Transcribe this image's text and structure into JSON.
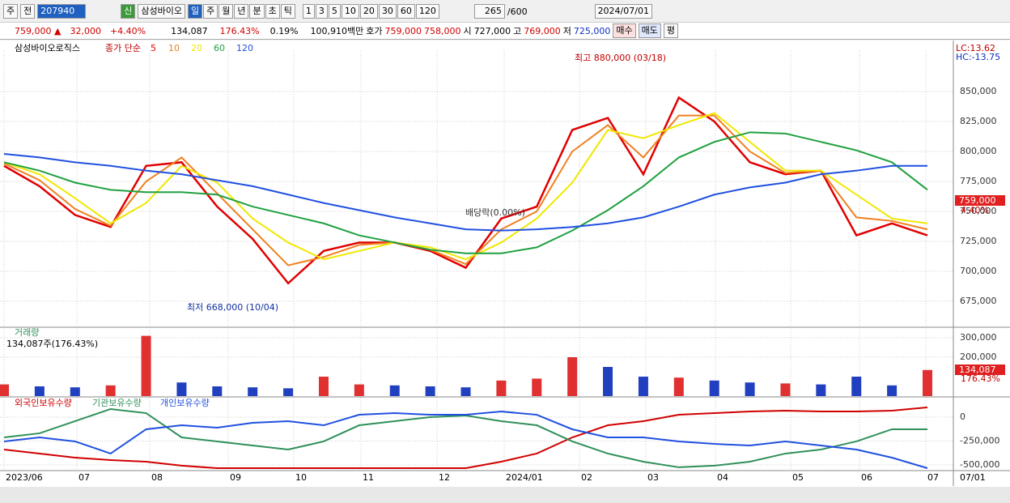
{
  "toolbar": {
    "market": "주",
    "mode": "전",
    "code": "207940",
    "badge": "신",
    "name": "삼성바이오",
    "periods": [
      "일",
      "주",
      "월",
      "년",
      "분",
      "초",
      "틱"
    ],
    "intervals": [
      "1",
      "3",
      "5",
      "10",
      "20",
      "30",
      "60",
      "120"
    ],
    "count": "265",
    "max": "/600",
    "date": "2024/07/01"
  },
  "info_bar": {
    "price": "759,000 ▲",
    "change": "32,000",
    "change_pct": "+4.40%",
    "volume": "134,087",
    "volume_pct": "176.43%",
    "turnover": "0.19%",
    "amount": "100,910백만",
    "quote_label": "호가",
    "ask": "759,000",
    "bid": "758,000",
    "open_label": "시",
    "open": "727,000",
    "high_label": "고",
    "high": "769,000",
    "low_label": "저",
    "low": "725,000",
    "buy": "매수",
    "sell": "매도",
    "eval": "평"
  },
  "time_axis": [
    "2023/06",
    "07",
    "08",
    "09",
    "10",
    "11",
    "12",
    "2024/01",
    "02",
    "03",
    "04",
    "05",
    "06",
    "07"
  ],
  "time_axis_end": "07/01",
  "chart_data": [
    {
      "type": "line",
      "title": "삼성바이오로직스",
      "legend_title": "종가 단순",
      "ylim": [
        654000,
        884500
      ],
      "yticks": [
        {
          "value": 675000,
          "label": "675,000"
        },
        {
          "value": 700000,
          "label": "700,000"
        },
        {
          "value": 725000,
          "label": "725,000"
        },
        {
          "value": 750000,
          "label": "750,000"
        },
        {
          "value": 775000,
          "label": "775,000"
        },
        {
          "value": 800000,
          "label": "800,000"
        },
        {
          "value": 825000,
          "label": "825,000"
        },
        {
          "value": 850000,
          "label": "850,000"
        }
      ],
      "grid": true,
      "series": [
        {
          "name": "5",
          "color": "#e00000",
          "values": [
            788000,
            771000,
            747000,
            737000,
            788000,
            791000,
            754000,
            727000,
            690000,
            717000,
            724000,
            724000,
            717000,
            703000,
            744000,
            754000,
            818000,
            828000,
            781000,
            845000,
            825000,
            791000,
            781000,
            784000,
            730000,
            740000,
            730000
          ]
        },
        {
          "name": "10",
          "color": "#f08020",
          "values": [
            790000,
            776000,
            752000,
            738000,
            775000,
            795000,
            765000,
            735000,
            705000,
            712000,
            722000,
            724000,
            718000,
            706000,
            735000,
            750000,
            800000,
            822000,
            795000,
            830000,
            830000,
            800000,
            782000,
            784000,
            745000,
            742000,
            735000
          ]
        },
        {
          "name": "20",
          "color": "#f0e800",
          "values": [
            791000,
            781000,
            761000,
            740000,
            757000,
            788000,
            774000,
            744000,
            724000,
            710000,
            717000,
            724000,
            720000,
            710000,
            724000,
            744000,
            774000,
            818000,
            811000,
            822000,
            832000,
            808000,
            784000,
            784000,
            764000,
            744000,
            740000
          ]
        },
        {
          "name": "60",
          "color": "#20a040",
          "values": [
            791000,
            784000,
            774000,
            768000,
            766000,
            766000,
            764000,
            754000,
            747000,
            740000,
            730000,
            724000,
            718000,
            715000,
            715000,
            720000,
            734000,
            751000,
            771000,
            795000,
            808000,
            816000,
            815000,
            808000,
            801000,
            791000,
            768000
          ]
        },
        {
          "name": "120",
          "color": "#2050e0",
          "values": [
            798000,
            795000,
            791000,
            788000,
            784000,
            781000,
            776000,
            771000,
            764000,
            757000,
            751000,
            745000,
            740000,
            735000,
            734000,
            735000,
            737000,
            740000,
            745000,
            754000,
            764000,
            770000,
            774000,
            781000,
            784000,
            788000,
            788000
          ]
        }
      ],
      "annotations": [
        "최고 880,000 (03/18)",
        "최저 668,000 (10/04)",
        "배당락(0.00%)"
      ],
      "last_price": "759,000",
      "last_pct": "4.40%",
      "lc": "LC:13.62",
      "hc": "HC:-13.75"
    },
    {
      "type": "bar",
      "title": "거래량",
      "subtitle": "134,087주(176.43%)",
      "ylim": [
        0,
        350000
      ],
      "yticks": [
        {
          "value": 200000,
          "label": "200,000"
        },
        {
          "value": 300000,
          "label": "300,000"
        }
      ],
      "values": [
        60000,
        50000,
        45000,
        55000,
        310000,
        70000,
        50000,
        45000,
        40000,
        100000,
        60000,
        55000,
        50000,
        45000,
        80000,
        90000,
        200000,
        150000,
        100000,
        95000,
        80000,
        70000,
        65000,
        60000,
        100000,
        55000,
        134087
      ],
      "colors": [
        "#e03030",
        "#2040c0",
        "#2040c0",
        "#e03030",
        "#e03030",
        "#2040c0",
        "#2040c0",
        "#2040c0",
        "#2040c0",
        "#e03030",
        "#e03030",
        "#2040c0",
        "#2040c0",
        "#2040c0",
        "#e03030",
        "#e03030",
        "#e03030",
        "#2040c0",
        "#2040c0",
        "#e03030",
        "#2040c0",
        "#2040c0",
        "#e03030",
        "#2040c0",
        "#2040c0",
        "#2040c0",
        "#e03030"
      ],
      "last_volume": "134,087",
      "last_pct": "176.43%"
    },
    {
      "type": "line",
      "ylim": [
        -551000,
        195000
      ],
      "yticks": [
        0,
        {
          "value": -250000,
          "label": "-250,000"
        },
        {
          "value": -500000,
          "label": "-500,000"
        }
      ],
      "series": [
        {
          "name": "외국인보유수량",
          "color": "#d00000",
          "values": [
            -339000,
            -381000,
            -424000,
            -449000,
            -466000,
            -508000,
            -534000,
            -534000,
            -534000,
            -534000,
            -534000,
            -534000,
            -534000,
            -534000,
            -466000,
            -381000,
            -212000,
            -85000,
            -42000,
            25000,
            42000,
            59000,
            68000,
            59000,
            59000,
            68000,
            102000
          ]
        },
        {
          "name": "기관보유수량",
          "color": "#30905a",
          "values": [
            -212000,
            -169000,
            -42000,
            85000,
            42000,
            -212000,
            -254000,
            -297000,
            -339000,
            -254000,
            -85000,
            -42000,
            0,
            17000,
            -42000,
            -85000,
            -254000,
            -381000,
            -466000,
            -525000,
            -508000,
            -466000,
            -381000,
            -339000,
            -254000,
            -127000,
            -127000
          ]
        },
        {
          "name": "개인보유수량",
          "color": "#2050e0",
          "values": [
            -254000,
            -212000,
            -254000,
            -381000,
            -127000,
            -85000,
            -110000,
            -59000,
            -42000,
            -85000,
            25000,
            42000,
            25000,
            25000,
            59000,
            25000,
            -127000,
            -212000,
            -212000,
            -254000,
            -280000,
            -297000,
            -254000,
            -297000,
            -339000,
            -424000,
            -534000
          ]
        }
      ]
    }
  ]
}
